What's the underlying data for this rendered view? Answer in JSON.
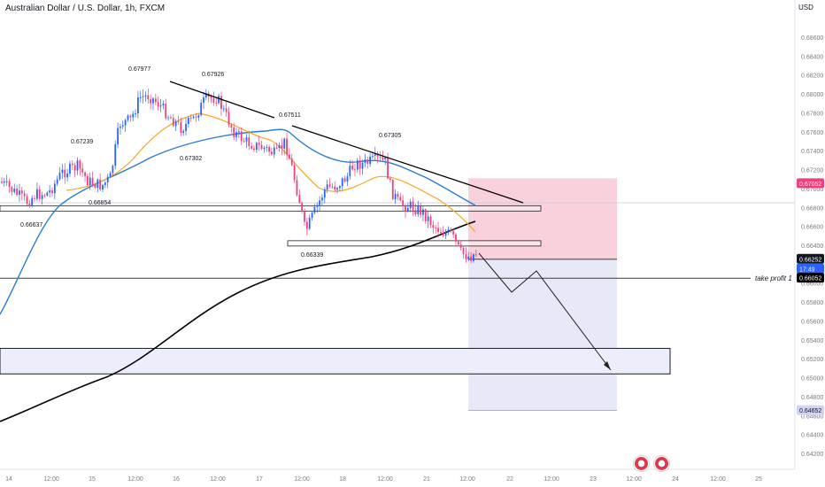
{
  "chart_title": "Australian Dollar / U.S. Dollar, 1h, FXCM",
  "currency": "USD",
  "colors": {
    "up_candle": "#2962ff",
    "down_candle": "#f23f7a",
    "ema_fast": "#f5a623",
    "ema_slow": "#2a7bd6",
    "long_ma": "#000000",
    "stop_zone": "#f8c9d6",
    "target_zone": "#e3e5f8",
    "support_zone": "#eceefc"
  },
  "chart_data": {
    "type": "candlestick",
    "symbol": "AUDUSD",
    "timeframe": "1h",
    "y_axis": {
      "ticks": [
        "0.68600",
        "0.68400",
        "0.68200",
        "0.68000",
        "0.67800",
        "0.67600",
        "0.67400",
        "0.67200",
        "0.67000",
        "0.66800",
        "0.66600",
        "0.66400",
        "0.66200",
        "0.66000",
        "0.65800",
        "0.65600",
        "0.65400",
        "0.65200",
        "0.65000",
        "0.64800",
        "0.64600",
        "0.64400",
        "0.64200"
      ],
      "range": [
        0.6416,
        0.6874
      ]
    },
    "x_axis": {
      "labels": [
        "14",
        "12:00",
        "15",
        "12:00",
        "16",
        "12:00",
        "17",
        "12:00",
        "18",
        "12:00",
        "21",
        "12:00",
        "22",
        "12:00",
        "23",
        "12:00",
        "24",
        "12:00",
        "25"
      ]
    },
    "price_tags": [
      {
        "label": "0.67052",
        "kind": "stop"
      },
      {
        "label": "0.66252",
        "kind": "current"
      },
      {
        "label": "17:49",
        "kind": "countdown"
      },
      {
        "label": "0.66052",
        "kind": "take-profit"
      },
      {
        "label": "0.64652",
        "kind": "target"
      }
    ],
    "annotations": [
      "0.67977",
      "0.67926",
      "0.67239",
      "0.67511",
      "0.67305",
      "0.67302",
      "0.66854",
      "0.66637",
      "0.66339"
    ],
    "take_profit_label": "take profit 1",
    "key_levels": [
      0.6679,
      0.6642
    ],
    "trade": {
      "entry": 0.66252,
      "stop": 0.67052,
      "target": 0.64652,
      "take_profit_1": 0.66052
    },
    "support_zone": [
      0.6504,
      0.6531
    ]
  }
}
